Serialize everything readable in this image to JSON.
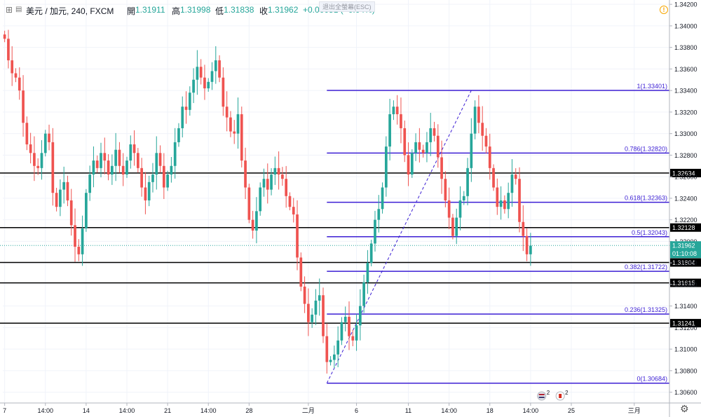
{
  "header": {
    "symbol": "美元 / 加元, 240, FXCM",
    "open_label": "開",
    "open": "1.31911",
    "high_label": "高",
    "high": "1.31998",
    "low_label": "低",
    "low": "1.31838",
    "close_label": "收",
    "close": "1.31962",
    "change": "+0.00051 (+0.04%)",
    "exit_fullscreen": "退出全螢幕(ESC)"
  },
  "colors": {
    "up": "#26a69a",
    "down": "#ef5350",
    "fib": "#3c1fd4",
    "hline": "#000000"
  },
  "chart_data": {
    "type": "candlestick",
    "y_axis": {
      "ticks": [
        "1.34200",
        "1.34000",
        "1.33800",
        "1.33600",
        "1.33400",
        "1.33200",
        "1.33000",
        "1.32800",
        "1.32600",
        "1.32400",
        "1.32200",
        "1.32000",
        "1.31800",
        "1.31600",
        "1.31400",
        "1.31200",
        "1.31000",
        "1.30800",
        "1.30600"
      ],
      "range": [
        1.305,
        1.3424
      ]
    },
    "x_axis": {
      "ticks": [
        {
          "label": "7",
          "i": 0
        },
        {
          "label": "14:00",
          "i": 11
        },
        {
          "label": "14",
          "i": 22
        },
        {
          "label": "14:00",
          "i": 33
        },
        {
          "label": "21",
          "i": 44
        },
        {
          "label": "14:00",
          "i": 55
        },
        {
          "label": "28",
          "i": 66
        },
        {
          "label": "二月",
          "i": 82
        },
        {
          "label": "6",
          "i": 95
        },
        {
          "label": "11",
          "i": 109
        },
        {
          "label": "14:00",
          "i": 120
        },
        {
          "label": "18",
          "i": 131
        },
        {
          "label": "14:00",
          "i": 142
        },
        {
          "label": "25",
          "i": 153
        },
        {
          "label": "三月",
          "i": 170
        }
      ],
      "total_slots": 180
    },
    "price_marker": {
      "value": 1.31962,
      "label": "1.31962",
      "countdown": "01:10:08"
    },
    "horizontal_lines": [
      {
        "value": 1.32634,
        "label": "1.32634"
      },
      {
        "value": 1.32128,
        "label": "1.32128"
      },
      {
        "value": 1.31804,
        "label": "1.31804"
      },
      {
        "value": 1.31615,
        "label": "1.31615"
      },
      {
        "value": 1.31241,
        "label": "1.31241"
      }
    ],
    "fibonacci": {
      "from_index": 87,
      "to_index": 126,
      "low": 1.30684,
      "high": 1.33401,
      "levels": [
        {
          "ratio": "1",
          "value": 1.33401,
          "label": "1(1.33401)"
        },
        {
          "ratio": "0.786",
          "value": 1.3282,
          "label": "0.786(1.32820)"
        },
        {
          "ratio": "0.618",
          "value": 1.32363,
          "label": "0.618(1.32363)"
        },
        {
          "ratio": "0.5",
          "value": 1.32043,
          "label": "0.5(1.32043)"
        },
        {
          "ratio": "0.382",
          "value": 1.31722,
          "label": "0.382(1.31722)"
        },
        {
          "ratio": "0.236",
          "value": 1.31325,
          "label": "0.236(1.31325)"
        },
        {
          "ratio": "0",
          "value": 1.30684,
          "label": "0(1.30684)"
        }
      ]
    },
    "events": {
      "us_count": "2",
      "ca_count": "2"
    },
    "close_path": [
      1.3388,
      1.3368,
      1.3356,
      1.3352,
      1.334,
      1.331,
      1.329,
      1.3282,
      1.327,
      1.3268,
      1.3282,
      1.33,
      1.3292,
      1.3245,
      1.3232,
      1.3248,
      1.3255,
      1.3238,
      1.3215,
      1.3195,
      1.3188,
      1.3212,
      1.3245,
      1.3262,
      1.3275,
      1.3268,
      1.3282,
      1.3275,
      1.3262,
      1.327,
      1.3285,
      1.327,
      1.3262,
      1.3275,
      1.329,
      1.3282,
      1.3268,
      1.325,
      1.3238,
      1.3255,
      1.3262,
      1.3282,
      1.327,
      1.325,
      1.3262,
      1.327,
      1.3292,
      1.3305,
      1.3325,
      1.3322,
      1.3338,
      1.335,
      1.3362,
      1.3352,
      1.3342,
      1.3348,
      1.3358,
      1.3368,
      1.3352,
      1.3325,
      1.3315,
      1.3302,
      1.33,
      1.3318,
      1.3275,
      1.325,
      1.322,
      1.321,
      1.3228,
      1.325,
      1.3258,
      1.3248,
      1.3262,
      1.3268,
      1.3262,
      1.3258,
      1.3242,
      1.3232,
      1.3225,
      1.3185,
      1.3158,
      1.3142,
      1.3125,
      1.3132,
      1.3145,
      1.315,
      1.3112,
      1.3088,
      1.309,
      1.3095,
      1.3108,
      1.3125,
      1.313,
      1.3112,
      1.3108,
      1.3122,
      1.314,
      1.3162,
      1.318,
      1.3198,
      1.322,
      1.323,
      1.325,
      1.3288,
      1.3318,
      1.3325,
      1.3318,
      1.3305,
      1.328,
      1.3262,
      1.3282,
      1.3292,
      1.3285,
      1.3282,
      1.3292,
      1.3305,
      1.3298,
      1.3278,
      1.3258,
      1.3238,
      1.3222,
      1.3205,
      1.3222,
      1.3238,
      1.3242,
      1.3268,
      1.33,
      1.3325,
      1.331,
      1.3298,
      1.3288,
      1.3268,
      1.325,
      1.3232,
      1.3238,
      1.323,
      1.3245,
      1.3262,
      1.3258,
      1.3218,
      1.3205,
      1.3188,
      1.3196
    ]
  }
}
